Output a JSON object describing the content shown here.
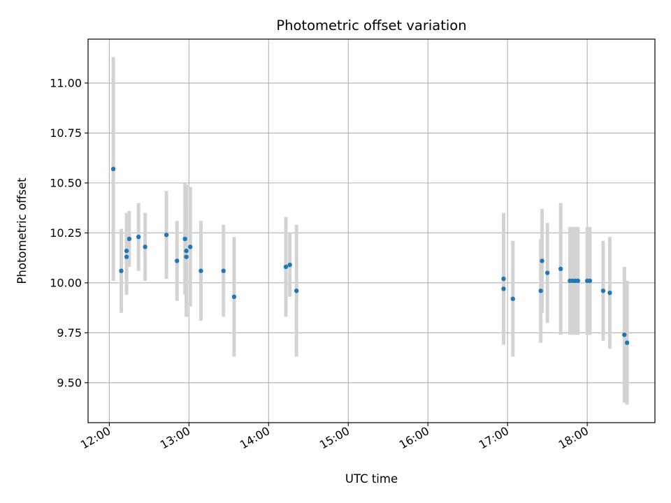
{
  "chart_data": {
    "type": "scatter",
    "title": "Photometric offset variation",
    "xlabel": "UTC time",
    "ylabel": "Photometric offset",
    "xlim": [
      "11:44",
      "18:51"
    ],
    "ylim": [
      9.3,
      11.22
    ],
    "x_ticks": [
      "12:00",
      "13:00",
      "14:00",
      "15:00",
      "16:00",
      "17:00",
      "18:00"
    ],
    "y_ticks": [
      "9.50",
      "9.75",
      "10.00",
      "10.25",
      "10.50",
      "10.75",
      "11.00"
    ],
    "grid": true,
    "marker_color": "#1f77b4",
    "errorbar_color": "#d3d3d3",
    "series": [
      {
        "points": [
          {
            "x": "12:03",
            "y": 10.57,
            "err": 0.56
          },
          {
            "x": "12:09",
            "y": 10.06,
            "err": 0.21
          },
          {
            "x": "12:13",
            "y": 10.16,
            "err": 0.19
          },
          {
            "x": "12:13",
            "y": 10.13,
            "err": 0.19
          },
          {
            "x": "12:15",
            "y": 10.22,
            "err": 0.14
          },
          {
            "x": "12:22",
            "y": 10.23,
            "err": 0.17
          },
          {
            "x": "12:27",
            "y": 10.18,
            "err": 0.17
          },
          {
            "x": "12:43",
            "y": 10.24,
            "err": 0.22
          },
          {
            "x": "12:51",
            "y": 10.11,
            "err": 0.2
          },
          {
            "x": "12:57",
            "y": 10.22,
            "err": 0.28
          },
          {
            "x": "12:58",
            "y": 10.16,
            "err": 0.33
          },
          {
            "x": "12:58",
            "y": 10.13,
            "err": 0.24
          },
          {
            "x": "13:01",
            "y": 10.18,
            "err": 0.3
          },
          {
            "x": "13:09",
            "y": 10.06,
            "err": 0.25
          },
          {
            "x": "13:26",
            "y": 10.06,
            "err": 0.23
          },
          {
            "x": "13:34",
            "y": 9.93,
            "err": 0.3
          },
          {
            "x": "14:13",
            "y": 10.08,
            "err": 0.25
          },
          {
            "x": "14:16",
            "y": 10.09,
            "err": 0.16
          },
          {
            "x": "14:21",
            "y": 9.96,
            "err": 0.33
          },
          {
            "x": "16:57",
            "y": 10.02,
            "err": 0.33
          },
          {
            "x": "16:57",
            "y": 9.97,
            "err": 0.26
          },
          {
            "x": "17:04",
            "y": 9.92,
            "err": 0.29
          },
          {
            "x": "17:25",
            "y": 9.96,
            "err": 0.26
          },
          {
            "x": "17:26",
            "y": 10.11,
            "err": 0.26
          },
          {
            "x": "17:30",
            "y": 10.05,
            "err": 0.25
          },
          {
            "x": "17:40",
            "y": 10.07,
            "err": 0.33
          },
          {
            "x": "17:47",
            "y": 10.01,
            "err": 0.27
          },
          {
            "x": "17:49",
            "y": 10.01,
            "err": 0.27
          },
          {
            "x": "17:51",
            "y": 10.01,
            "err": 0.27
          },
          {
            "x": "17:53",
            "y": 10.01,
            "err": 0.27
          },
          {
            "x": "18:00",
            "y": 10.01,
            "err": 0.27
          },
          {
            "x": "18:02",
            "y": 10.01,
            "err": 0.27
          },
          {
            "x": "18:12",
            "y": 9.96,
            "err": 0.25
          },
          {
            "x": "18:17",
            "y": 9.95,
            "err": 0.28
          },
          {
            "x": "18:28",
            "y": 9.74,
            "err": 0.34
          },
          {
            "x": "18:30",
            "y": 9.7,
            "err": 0.31
          }
        ]
      }
    ]
  }
}
